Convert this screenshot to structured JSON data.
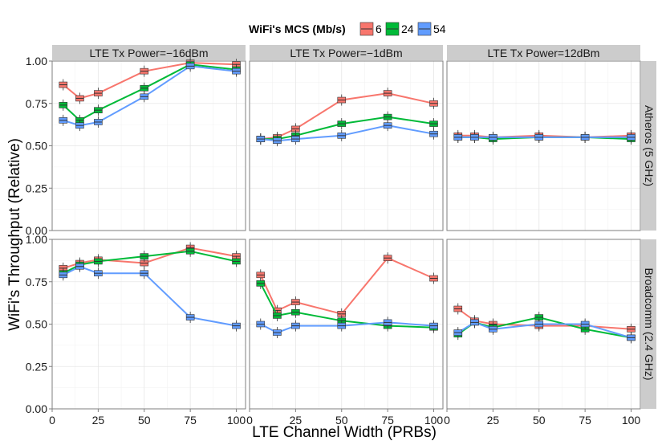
{
  "chart_data": {
    "type": "line",
    "ylabel": "WiFi's Throughput (Relative)",
    "xlabel": "LTE Channel Width (PRBs)",
    "legend": {
      "title": "WiFi's MCS (Mb/s)",
      "position": "top-center",
      "entries": [
        {
          "label": "6",
          "color": "#f8766d"
        },
        {
          "label": "24",
          "color": "#00ba38"
        },
        {
          "label": "54",
          "color": "#619cff"
        }
      ]
    },
    "x": [
      6,
      15,
      25,
      50,
      75,
      100
    ],
    "xlim": [
      0,
      105
    ],
    "ylim": [
      0,
      1.0
    ],
    "xticks": [
      "0",
      "25",
      "50",
      "75",
      "100"
    ],
    "yticks": [
      "0.00",
      "0.25",
      "0.50",
      "0.75",
      "1.00"
    ],
    "columns": [
      "LTE Tx Power=−16dBm",
      "LTE Tx Power=−1dBm",
      "LTE Tx Power=12dBm"
    ],
    "rows": [
      "Atheros (5 GHz)",
      "Broadcomm (2.4 GHz)"
    ],
    "panels": [
      {
        "row": 0,
        "col": 0,
        "series": [
          {
            "name": "6",
            "values": [
              0.86,
              0.78,
              0.81,
              0.94,
              0.99,
              0.98
            ]
          },
          {
            "name": "24",
            "values": [
              0.74,
              0.65,
              0.71,
              0.84,
              0.98,
              0.95
            ]
          },
          {
            "name": "54",
            "values": [
              0.65,
              0.62,
              0.64,
              0.79,
              0.97,
              0.94
            ]
          }
        ]
      },
      {
        "row": 0,
        "col": 1,
        "series": [
          {
            "name": "6",
            "values": [
              0.54,
              0.55,
              0.6,
              0.77,
              0.81,
              0.75
            ]
          },
          {
            "name": "24",
            "values": [
              0.54,
              0.54,
              0.56,
              0.63,
              0.67,
              0.63
            ]
          },
          {
            "name": "54",
            "values": [
              0.54,
              0.53,
              0.54,
              0.56,
              0.62,
              0.57
            ]
          }
        ]
      },
      {
        "row": 0,
        "col": 2,
        "series": [
          {
            "name": "6",
            "values": [
              0.56,
              0.56,
              0.55,
              0.56,
              0.55,
              0.56
            ]
          },
          {
            "name": "24",
            "values": [
              0.55,
              0.55,
              0.54,
              0.55,
              0.55,
              0.54
            ]
          },
          {
            "name": "54",
            "values": [
              0.55,
              0.55,
              0.55,
              0.55,
              0.55,
              0.55
            ]
          }
        ]
      },
      {
        "row": 1,
        "col": 0,
        "series": [
          {
            "name": "6",
            "values": [
              0.83,
              0.86,
              0.88,
              0.86,
              0.95,
              0.9
            ]
          },
          {
            "name": "24",
            "values": [
              0.8,
              0.85,
              0.87,
              0.9,
              0.93,
              0.87
            ]
          },
          {
            "name": "54",
            "values": [
              0.79,
              0.84,
              0.8,
              0.8,
              0.54,
              0.49
            ]
          }
        ]
      },
      {
        "row": 1,
        "col": 1,
        "series": [
          {
            "name": "6",
            "values": [
              0.79,
              0.58,
              0.63,
              0.56,
              0.89,
              0.77
            ]
          },
          {
            "name": "24",
            "values": [
              0.74,
              0.55,
              0.57,
              0.52,
              0.49,
              0.48
            ]
          },
          {
            "name": "54",
            "values": [
              0.5,
              0.45,
              0.49,
              0.49,
              0.51,
              0.49
            ]
          }
        ]
      },
      {
        "row": 1,
        "col": 2,
        "series": [
          {
            "name": "6",
            "values": [
              0.59,
              0.52,
              0.5,
              0.49,
              0.49,
              0.47
            ]
          },
          {
            "name": "24",
            "values": [
              0.44,
              0.51,
              0.48,
              0.54,
              0.47,
              0.42
            ]
          },
          {
            "name": "54",
            "values": [
              0.45,
              0.51,
              0.47,
              0.5,
              0.5,
              0.42
            ]
          }
        ]
      }
    ]
  }
}
